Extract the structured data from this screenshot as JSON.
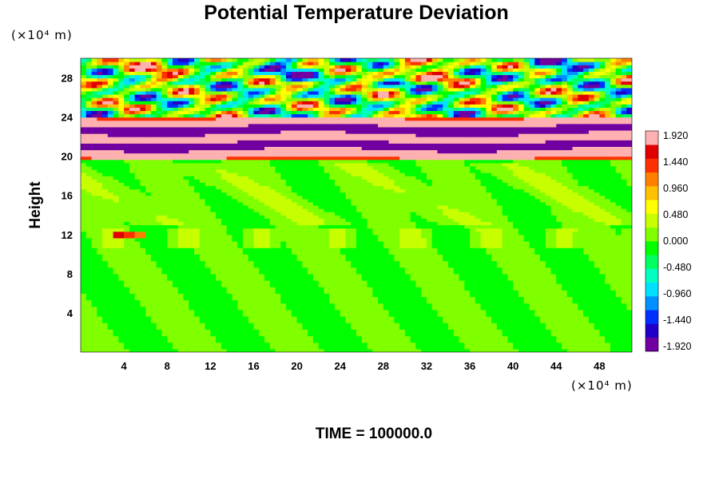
{
  "chart_data": {
    "type": "heatmap",
    "title": "Potential Temperature Deviation",
    "ylabel": "Height",
    "x_unit_label": "(×10⁴ m)",
    "y_unit_label": "(×10⁴ m)",
    "xlim": [
      0,
      51
    ],
    "ylim": [
      0,
      30
    ],
    "x_ticks": [
      "4",
      "8",
      "12",
      "16",
      "20",
      "24",
      "28",
      "32",
      "36",
      "40",
      "44",
      "48"
    ],
    "y_ticks": [
      "4",
      "8",
      "12",
      "16",
      "20",
      "24",
      "28"
    ],
    "colorbar": {
      "min": -1.92,
      "max": 1.92,
      "labels": [
        "1.920",
        "1.440",
        "0.960",
        "0.480",
        "0.000",
        "-0.480",
        "-0.960",
        "-1.440",
        "-1.920"
      ]
    },
    "field": {
      "lower_region": {
        "y_range": [
          0,
          19.5
        ],
        "typical_value": 0.0,
        "description": "near-zero background with weak positive patches"
      },
      "bands": [
        {
          "y_center": 20.3,
          "value": 1.92
        },
        {
          "y_center": 21.1,
          "value": -1.92
        },
        {
          "y_center": 21.9,
          "value": 1.92
        },
        {
          "y_center": 22.7,
          "value": -1.92
        },
        {
          "y_center": 23.5,
          "value": 1.92
        }
      ],
      "upper_region": {
        "y_range": [
          24,
          30
        ],
        "description": "wave-like alternating positive and negative deviations"
      }
    },
    "footer": "TIME = 100000.0"
  },
  "colors": {
    "scale": [
      "#7000a0",
      "#2000c8",
      "#0030ff",
      "#0090ff",
      "#00e0ff",
      "#00ffc0",
      "#00ff60",
      "#00ff00",
      "#80ff00",
      "#c8ff00",
      "#ffff00",
      "#ffc000",
      "#ff8000",
      "#ff3000",
      "#e00000",
      "#ffb0b0"
    ]
  }
}
